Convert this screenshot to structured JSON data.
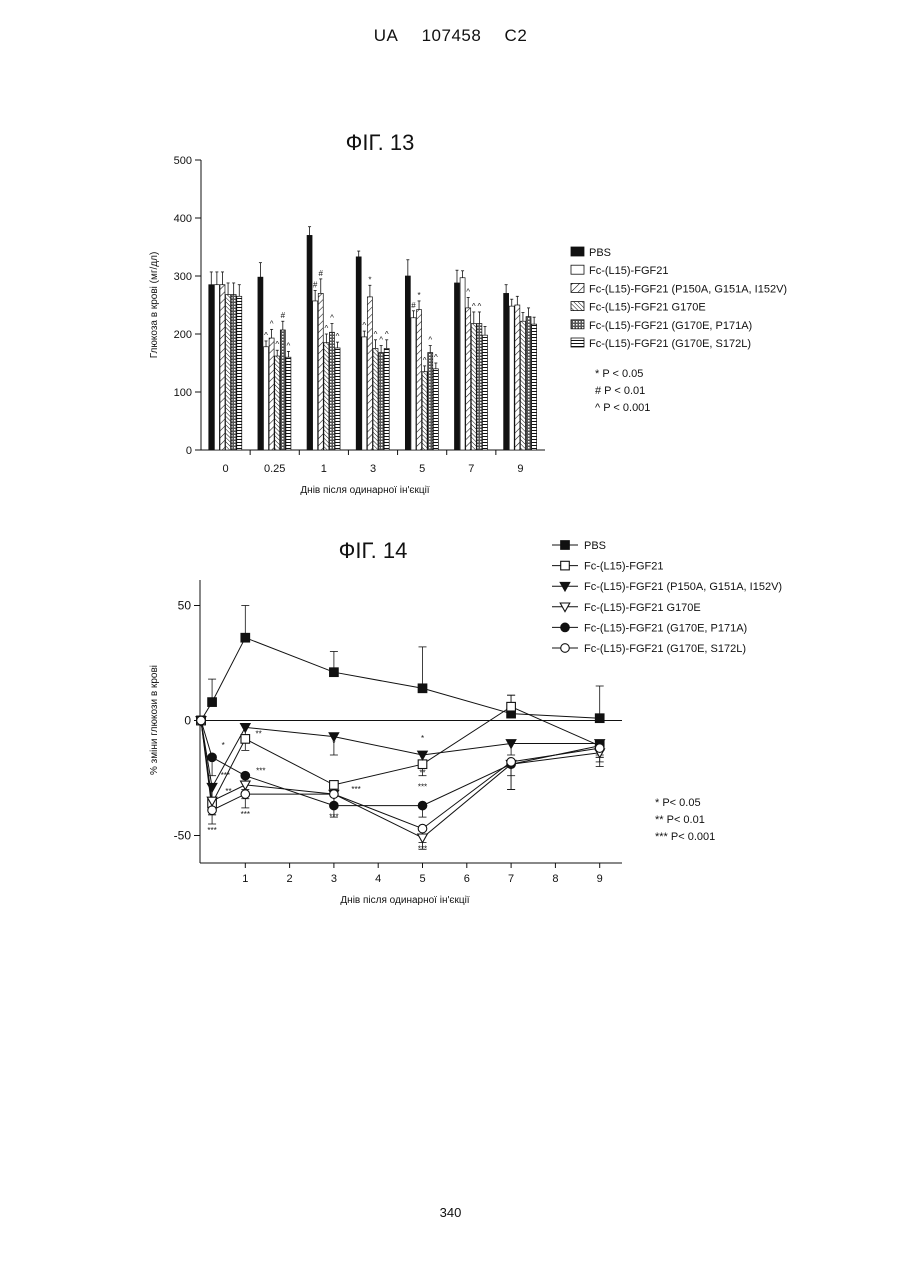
{
  "header": {
    "office": "UA",
    "number": "107458",
    "kind": "C2"
  },
  "page_number": "340",
  "chart_data": [
    {
      "type": "bar",
      "title": "ФІГ. 13",
      "xlabel": "Днів після одинарної ін'єкції",
      "ylabel": "Глюкоза в крові (мг/дл)",
      "categories": [
        "0",
        "0.25",
        "1",
        "3",
        "5",
        "7",
        "9"
      ],
      "yticks": [
        "0",
        "100",
        "200",
        "300",
        "400",
        "500"
      ],
      "ylim": [
        0,
        500
      ],
      "series": [
        {
          "name": "PBS",
          "pattern": "solid",
          "values": [
            285,
            298,
            370,
            333,
            300,
            288,
            270
          ],
          "errors": [
            22,
            25,
            15,
            10,
            28,
            22,
            15
          ],
          "marks": [
            "",
            "",
            "",
            "",
            "",
            "",
            ""
          ]
        },
        {
          "name": "Fc-(L15)-FGF21",
          "pattern": "empty",
          "values": [
            285,
            178,
            257,
            195,
            228,
            297,
            248
          ],
          "errors": [
            22,
            10,
            18,
            10,
            12,
            12,
            12
          ],
          "marks": [
            "",
            "^",
            "#",
            "^",
            "#",
            "",
            ""
          ]
        },
        {
          "name": "Fc-(L15)-FGF21 (P150A, G151A, I152V)",
          "pattern": "diag",
          "values": [
            285,
            193,
            270,
            264,
            242,
            245,
            250
          ],
          "errors": [
            22,
            15,
            25,
            20,
            15,
            18,
            15
          ],
          "marks": [
            "",
            "^",
            "#",
            "*",
            "*",
            "^",
            ""
          ]
        },
        {
          "name": "Fc-(L15)-FGF21 G170E",
          "pattern": "diag-dense",
          "values": [
            268,
            162,
            185,
            175,
            135,
            218,
            222
          ],
          "errors": [
            20,
            10,
            15,
            15,
            10,
            20,
            15
          ],
          "marks": [
            "",
            "^",
            "^",
            "^",
            "^",
            "^",
            ""
          ]
        },
        {
          "name": "Fc-(L15)-FGF21 (G170E, P171A)",
          "pattern": "cross",
          "values": [
            268,
            207,
            203,
            168,
            168,
            218,
            230
          ],
          "errors": [
            20,
            15,
            15,
            12,
            12,
            20,
            15
          ],
          "marks": [
            "",
            "#",
            "^",
            "^",
            "^",
            "^",
            ""
          ]
        },
        {
          "name": "Fc-(L15)-FGF21 (G170E, S172L)",
          "pattern": "horiz",
          "values": [
            265,
            160,
            176,
            175,
            140,
            198,
            217
          ],
          "errors": [
            20,
            10,
            10,
            15,
            10,
            15,
            12
          ],
          "marks": [
            "",
            "^",
            "^",
            "^",
            "^",
            "",
            ""
          ]
        }
      ],
      "significance_legend": [
        "* P < 0.05",
        "# P < 0.01",
        "^ P < 0.001"
      ]
    },
    {
      "type": "line",
      "title": "ФІГ. 14",
      "xlabel": "Днів після одинарної ін'єкції",
      "ylabel": "% зміни глюкози в крові",
      "x": [
        0,
        0.25,
        1,
        3,
        5,
        7,
        9
      ],
      "xticks": [
        "1",
        "2",
        "3",
        "4",
        "5",
        "6",
        "7",
        "8",
        "9"
      ],
      "yticks": [
        "-50",
        "0",
        "50"
      ],
      "xlim": [
        0,
        9.5
      ],
      "ylim": [
        -62,
        62
      ],
      "zero_line": true,
      "series": [
        {
          "name": "PBS",
          "marker": "square-filled",
          "values": [
            0,
            8,
            36,
            21,
            14,
            3,
            1
          ],
          "errors": [
            0,
            10,
            14,
            9,
            18,
            8,
            14
          ]
        },
        {
          "name": "Fc-(L15)-FGF21",
          "marker": "square-open",
          "values": [
            0,
            -36,
            -8,
            -28,
            -19,
            6,
            -11
          ],
          "errors": [
            0,
            5,
            5,
            5,
            5,
            5,
            5
          ]
        },
        {
          "name": "Fc-(L15)-FGF21 (P150A, G151A, I152V)",
          "marker": "triangle-down-filled",
          "values": [
            0,
            -29,
            -3,
            -7,
            -15,
            -10,
            -10
          ],
          "errors": [
            0,
            7,
            5,
            8,
            5,
            5,
            5
          ]
        },
        {
          "name": "Fc-(L15)-FGF21 G170E",
          "marker": "triangle-down-open",
          "values": [
            0,
            -35,
            -28,
            -32,
            -51,
            -19,
            -14
          ],
          "errors": [
            0,
            6,
            6,
            5,
            5,
            11,
            6
          ]
        },
        {
          "name": "Fc-(L15)-FGF21 (G170E, P171A)",
          "marker": "circle-filled",
          "values": [
            0,
            -16,
            -24,
            -37,
            -37,
            -19,
            -11
          ],
          "errors": [
            0,
            8,
            6,
            5,
            5,
            11,
            5
          ]
        },
        {
          "name": "Fc-(L15)-FGF21 (G170E, S172L)",
          "marker": "circle-open",
          "values": [
            0,
            -39,
            -32,
            -32,
            -47,
            -18,
            -12
          ],
          "errors": [
            0,
            6,
            6,
            5,
            6,
            6,
            6
          ]
        }
      ],
      "annotations": [
        {
          "text": "*",
          "x": 0.5,
          "y": -12
        },
        {
          "text": "***",
          "x": 0.25,
          "y": -49
        },
        {
          "text": "**",
          "x": 0.62,
          "y": -32
        },
        {
          "text": "***",
          "x": 0.55,
          "y": -25
        },
        {
          "text": "**",
          "x": 1.3,
          "y": -7
        },
        {
          "text": "***",
          "x": 1.35,
          "y": -23
        },
        {
          "text": "***",
          "x": 1.0,
          "y": -42
        },
        {
          "text": "*",
          "x": 3.0,
          "y": -11
        },
        {
          "text": "***",
          "x": 3.5,
          "y": -31
        },
        {
          "text": "***",
          "x": 3.0,
          "y": -43
        },
        {
          "text": "*",
          "x": 5.0,
          "y": -9
        },
        {
          "text": "**",
          "x": 5.0,
          "y": -24
        },
        {
          "text": "***",
          "x": 5.0,
          "y": -30
        },
        {
          "text": "***",
          "x": 5.0,
          "y": -57
        }
      ],
      "significance_legend": [
        "* P< 0.05",
        "** P< 0.01",
        "*** P< 0.001"
      ]
    }
  ],
  "colors": {
    "ink": "#111111"
  }
}
